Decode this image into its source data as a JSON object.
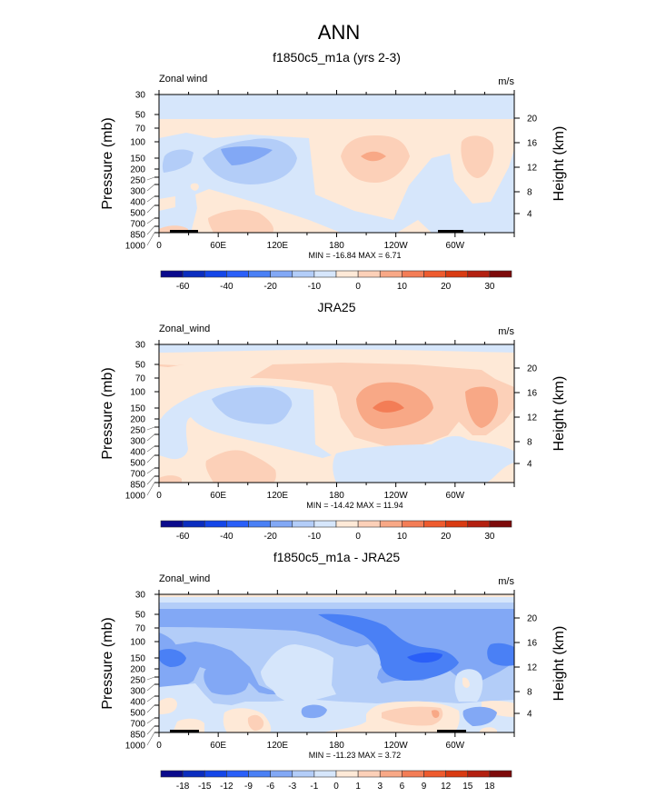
{
  "main_title": "ANN",
  "colors": {
    "palette": [
      "#0a0a8c",
      "#0b2dbf",
      "#1446e8",
      "#2a5ff8",
      "#4a80f5",
      "#82a8f5",
      "#b3cdf8",
      "#d6e6fb",
      "#fee9d7",
      "#fcd0b8",
      "#f8a886",
      "#f37d56",
      "#ee5b2e",
      "#d93b12",
      "#b32010",
      "#7d0a0a"
    ]
  },
  "chart_data": [
    {
      "type": "contour",
      "title": "f1850c5_m1a (yrs 2-3)",
      "left_label": "Zonal wind",
      "right_label": "m/s",
      "ylabel": "Pressure (mb)",
      "ylabel_right": "Height (km)",
      "x_ticks": [
        "0",
        "60E",
        "120E",
        "180",
        "120W",
        "60W"
      ],
      "y_ticks": [
        "30",
        "50",
        "70",
        "100",
        "150",
        "200",
        "250",
        "300",
        "400",
        "500",
        "700",
        "850",
        "1000"
      ],
      "y_ticks_right": [
        "20",
        "16",
        "12",
        "8",
        "4"
      ],
      "min_max": "MIN = -16.84  MAX =   6.71",
      "colorbar_labels": [
        "-60",
        "-40",
        "-20",
        "-10",
        "0",
        "10",
        "20",
        "30"
      ]
    },
    {
      "type": "contour",
      "title": "JRA25",
      "left_label": "Zonal_wind",
      "right_label": "m/s",
      "ylabel": "Pressure (mb)",
      "ylabel_right": "Height (km)",
      "x_ticks": [
        "0",
        "60E",
        "120E",
        "180",
        "120W",
        "60W"
      ],
      "y_ticks": [
        "30",
        "50",
        "70",
        "100",
        "150",
        "200",
        "250",
        "300",
        "400",
        "500",
        "700",
        "850",
        "1000"
      ],
      "y_ticks_right": [
        "20",
        "16",
        "12",
        "8",
        "4"
      ],
      "min_max": "MIN = -14.42  MAX =  11.94",
      "colorbar_labels": [
        "-60",
        "-40",
        "-20",
        "-10",
        "0",
        "10",
        "20",
        "30"
      ]
    },
    {
      "type": "contour",
      "title": "f1850c5_m1a - JRA25",
      "left_label": "Zonal_wind",
      "right_label": "m/s",
      "ylabel": "Pressure (mb)",
      "ylabel_right": "Height (km)",
      "x_ticks": [
        "0",
        "60E",
        "120E",
        "180",
        "120W",
        "60W"
      ],
      "y_ticks": [
        "30",
        "50",
        "70",
        "100",
        "150",
        "200",
        "250",
        "300",
        "400",
        "500",
        "700",
        "850",
        "1000"
      ],
      "y_ticks_right": [
        "20",
        "16",
        "12",
        "8",
        "4"
      ],
      "min_max": "MIN = -11.23  MAX =   3.72",
      "colorbar_labels": [
        "-18",
        "-15",
        "-12",
        "-9",
        "-6",
        "-3",
        "-1",
        "0",
        "1",
        "3",
        "6",
        "9",
        "12",
        "15",
        "18"
      ]
    }
  ]
}
